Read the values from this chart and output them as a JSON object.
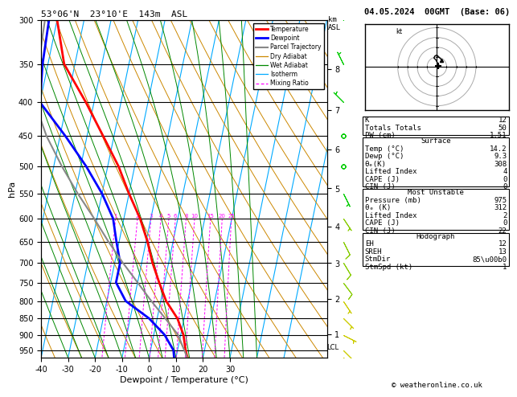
{
  "title_left": "53°06'N  23°10'E  143m  ASL",
  "title_right": "04.05.2024  00GMT  (Base: 06)",
  "copyright": "© weatheronline.co.uk",
  "ylabel_left": "hPa",
  "xlabel": "Dewpoint / Temperature (°C)",
  "lcl_pressure": 940,
  "legend_items": [
    {
      "label": "Temperature",
      "color": "#ff0000",
      "lw": 2.0,
      "ls": "-"
    },
    {
      "label": "Dewpoint",
      "color": "#0000ff",
      "lw": 2.0,
      "ls": "-"
    },
    {
      "label": "Parcel Trajectory",
      "color": "#888888",
      "lw": 1.5,
      "ls": "-"
    },
    {
      "label": "Dry Adiabat",
      "color": "#cc8800",
      "lw": 0.9,
      "ls": "-"
    },
    {
      "label": "Wet Adiabat",
      "color": "#008800",
      "lw": 0.9,
      "ls": "-"
    },
    {
      "label": "Isotherm",
      "color": "#00aaff",
      "lw": 0.9,
      "ls": "-"
    },
    {
      "label": "Mixing Ratio",
      "color": "#ff00ff",
      "lw": 0.9,
      "ls": "--"
    }
  ],
  "temperature_profile": {
    "pressure": [
      975,
      950,
      900,
      850,
      800,
      750,
      700,
      650,
      600,
      550,
      500,
      450,
      400,
      350,
      300
    ],
    "temp": [
      14.2,
      13.0,
      11.0,
      7.5,
      2.0,
      -2.0,
      -6.0,
      -9.5,
      -14.0,
      -20.0,
      -26.0,
      -34.0,
      -43.0,
      -54.0,
      -60.0
    ]
  },
  "dewpoint_profile": {
    "pressure": [
      975,
      950,
      900,
      850,
      800,
      750,
      700,
      650,
      600,
      550,
      500,
      450,
      400,
      350,
      300
    ],
    "temp": [
      9.3,
      8.5,
      4.0,
      -3.0,
      -13.0,
      -18.0,
      -18.0,
      -21.0,
      -24.0,
      -30.0,
      -38.0,
      -48.0,
      -60.0,
      -62.0,
      -63.0
    ]
  },
  "parcel_profile": {
    "pressure": [
      975,
      950,
      900,
      850,
      800,
      750,
      700,
      650,
      600,
      550,
      500,
      450,
      400,
      350,
      300
    ],
    "temp": [
      14.2,
      12.5,
      9.0,
      3.0,
      -3.5,
      -10.0,
      -17.0,
      -24.0,
      -31.0,
      -39.0,
      -47.0,
      -55.0,
      -62.0,
      -63.5,
      -64.5
    ]
  },
  "bg_color": "#ffffff",
  "isotherm_color": "#00aaff",
  "dry_adiabat_color": "#cc8800",
  "wet_adiabat_color": "#008800",
  "mixing_ratio_color": "#ff00ff",
  "temp_color": "#ff0000",
  "dew_color": "#0000ff",
  "parcel_color": "#888888",
  "pmin": 300,
  "pmax": 975,
  "temp_axis_min": -40,
  "temp_axis_max": 35,
  "skew": 22.0,
  "km_ticks": [
    1,
    2,
    3,
    4,
    5,
    6,
    7,
    8
  ],
  "mr_vals": [
    1,
    2,
    3,
    4,
    5,
    6,
    8,
    10,
    15,
    20,
    25
  ],
  "mr_labels": [
    "1",
    "2",
    "3",
    "4",
    "5",
    "6",
    "8",
    "10",
    "15",
    "20",
    "25"
  ],
  "table": {
    "K": "12",
    "Totals Totals": "50",
    "PW (cm)": "1.51",
    "Temp (\\u00b0C)": "14.2",
    "Dewp (\\u00b0C)": "9.3",
    "theta_e_K_surf": "308",
    "Lifted_Index_surf": "4",
    "CAPE_J_surf": "0",
    "CIN_J_surf": "0",
    "Pressure_mb_mu": "975",
    "theta_e_K_mu": "312",
    "Lifted_Index_mu": "2",
    "CAPE_J_mu": "0",
    "CIN_J_mu": "22",
    "EH": "12",
    "SREH": "13",
    "StmDir": "85\\u00b0",
    "StmSpd_kt": "1"
  },
  "hodo_circles": [
    5,
    10,
    15,
    20
  ],
  "hodo_u": [
    0.5,
    0.3,
    -0.5,
    -1.5,
    -1.0,
    0.0,
    1.0,
    2.5
  ],
  "hodo_v": [
    0.5,
    2.0,
    3.5,
    4.5,
    5.5,
    6.0,
    5.0,
    3.5
  ],
  "wind_barb_pressures": [
    975,
    950,
    900,
    850,
    800,
    750,
    700,
    650,
    600,
    550,
    500,
    450,
    400,
    350,
    300
  ],
  "wind_u": [
    -1,
    -1,
    -2,
    -2,
    -2,
    -3,
    -3,
    -2,
    -2,
    -1,
    0,
    0,
    1,
    1,
    1
  ],
  "wind_v": [
    1,
    1,
    1,
    2,
    3,
    4,
    5,
    4,
    3,
    2,
    1,
    0,
    -1,
    -2,
    -2
  ]
}
